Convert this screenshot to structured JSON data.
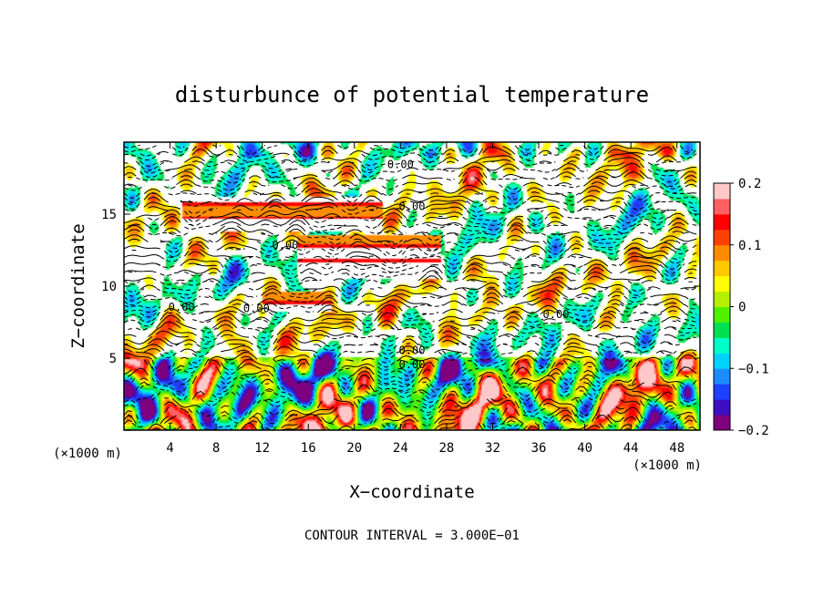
{
  "chart_data": {
    "type": "heatmap",
    "title": "disturbunce of potential temperature",
    "xlabel": "X−coordinate",
    "ylabel": "Z−coordinate",
    "x_unit": "(×1000 m)",
    "y_unit": "(×1000 m)",
    "xlim": [
      0,
      50
    ],
    "ylim": [
      0,
      20
    ],
    "x_ticks": [
      4,
      8,
      12,
      16,
      20,
      24,
      28,
      32,
      36,
      40,
      44,
      48
    ],
    "y_ticks": [
      5,
      10,
      15
    ],
    "colorbar": {
      "range": [
        -0.2,
        0.2
      ],
      "tick_values": [
        0.2,
        0.1,
        0,
        -0.1,
        -0.2
      ],
      "tick_labels": [
        "0.2",
        "0.1",
        "0",
        "−0.1",
        "−0.2"
      ],
      "colors": [
        "#7f007f",
        "#3b0fbf",
        "#1e40ff",
        "#1e8cff",
        "#00d2ff",
        "#00ffc8",
        "#00e050",
        "#50f000",
        "#b4f000",
        "#ffff00",
        "#ffc800",
        "#ff8c00",
        "#ff4000",
        "#ff0000",
        "#ff6060",
        "#ffc8c8"
      ]
    },
    "contour_label": "0.00",
    "footer": "CONTOUR INTERVAL = 3.000E−01"
  }
}
